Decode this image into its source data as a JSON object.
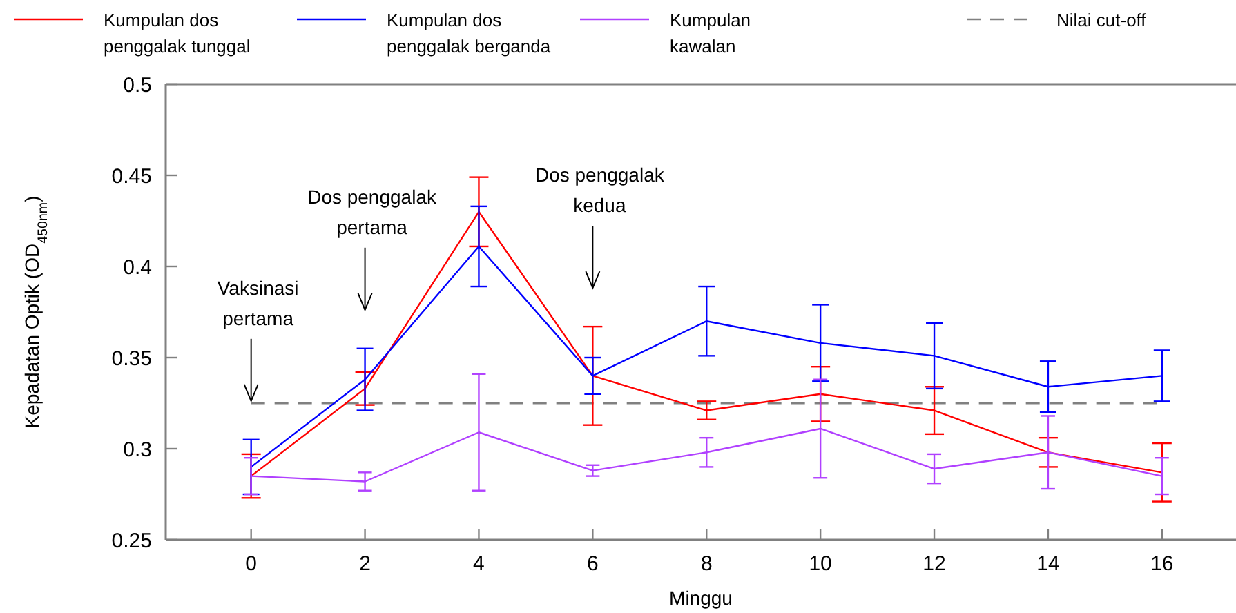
{
  "chart_data": {
    "type": "line",
    "xlabel": "Minggu",
    "ylabel": "Kepadatan Optik (OD$_{450nm}$)",
    "x": [
      0,
      2,
      4,
      6,
      8,
      10,
      12,
      14,
      16
    ],
    "xlim": [
      -1.5,
      17.3
    ],
    "xticks": [
      0,
      2,
      4,
      6,
      8,
      10,
      12,
      14,
      16
    ],
    "ylim": [
      0.25,
      0.5
    ],
    "yticks": [
      0.25,
      0.3,
      0.35,
      0.4,
      0.45,
      0.5
    ],
    "grid": false,
    "legend": "top",
    "marker": "none",
    "line_style": "solid",
    "series": [
      {
        "name": "Kumpulan dos penggalak tunggal",
        "color": "#ff0000",
        "values": [
          0.285,
          0.333,
          0.43,
          0.34,
          0.321,
          0.33,
          0.321,
          0.298,
          0.287
        ],
        "errors": [
          0.012,
          0.009,
          0.019,
          0.027,
          0.005,
          0.015,
          0.013,
          0.008,
          0.016
        ]
      },
      {
        "name": "Kumpulan dos penggalak berganda",
        "color": "#0000ff",
        "values": [
          0.29,
          0.338,
          0.411,
          0.34,
          0.37,
          0.358,
          0.351,
          0.334,
          0.34
        ],
        "errors": [
          0.015,
          0.017,
          0.022,
          0.01,
          0.019,
          0.021,
          0.018,
          0.014,
          0.014
        ]
      },
      {
        "name": "Kumpulan kawalan",
        "color": "#b040ff",
        "values": [
          0.285,
          0.282,
          0.309,
          0.288,
          0.298,
          0.311,
          0.289,
          0.298,
          0.285
        ],
        "errors": [
          0.01,
          0.005,
          0.032,
          0.003,
          0.008,
          0.027,
          0.008,
          0.02,
          0.01
        ]
      }
    ],
    "ref_lines": [
      {
        "axis": "y",
        "value": 0.325,
        "label": "Nilai cut-off",
        "color": "#808080",
        "line_style": "dashed"
      }
    ],
    "annotations": [
      {
        "text": "Vaksinasi pertama",
        "x": 0
      },
      {
        "text": "Dos penggalak pertama",
        "x": 2
      },
      {
        "text": "Dos penggalak kedua",
        "x": 6
      }
    ]
  }
}
